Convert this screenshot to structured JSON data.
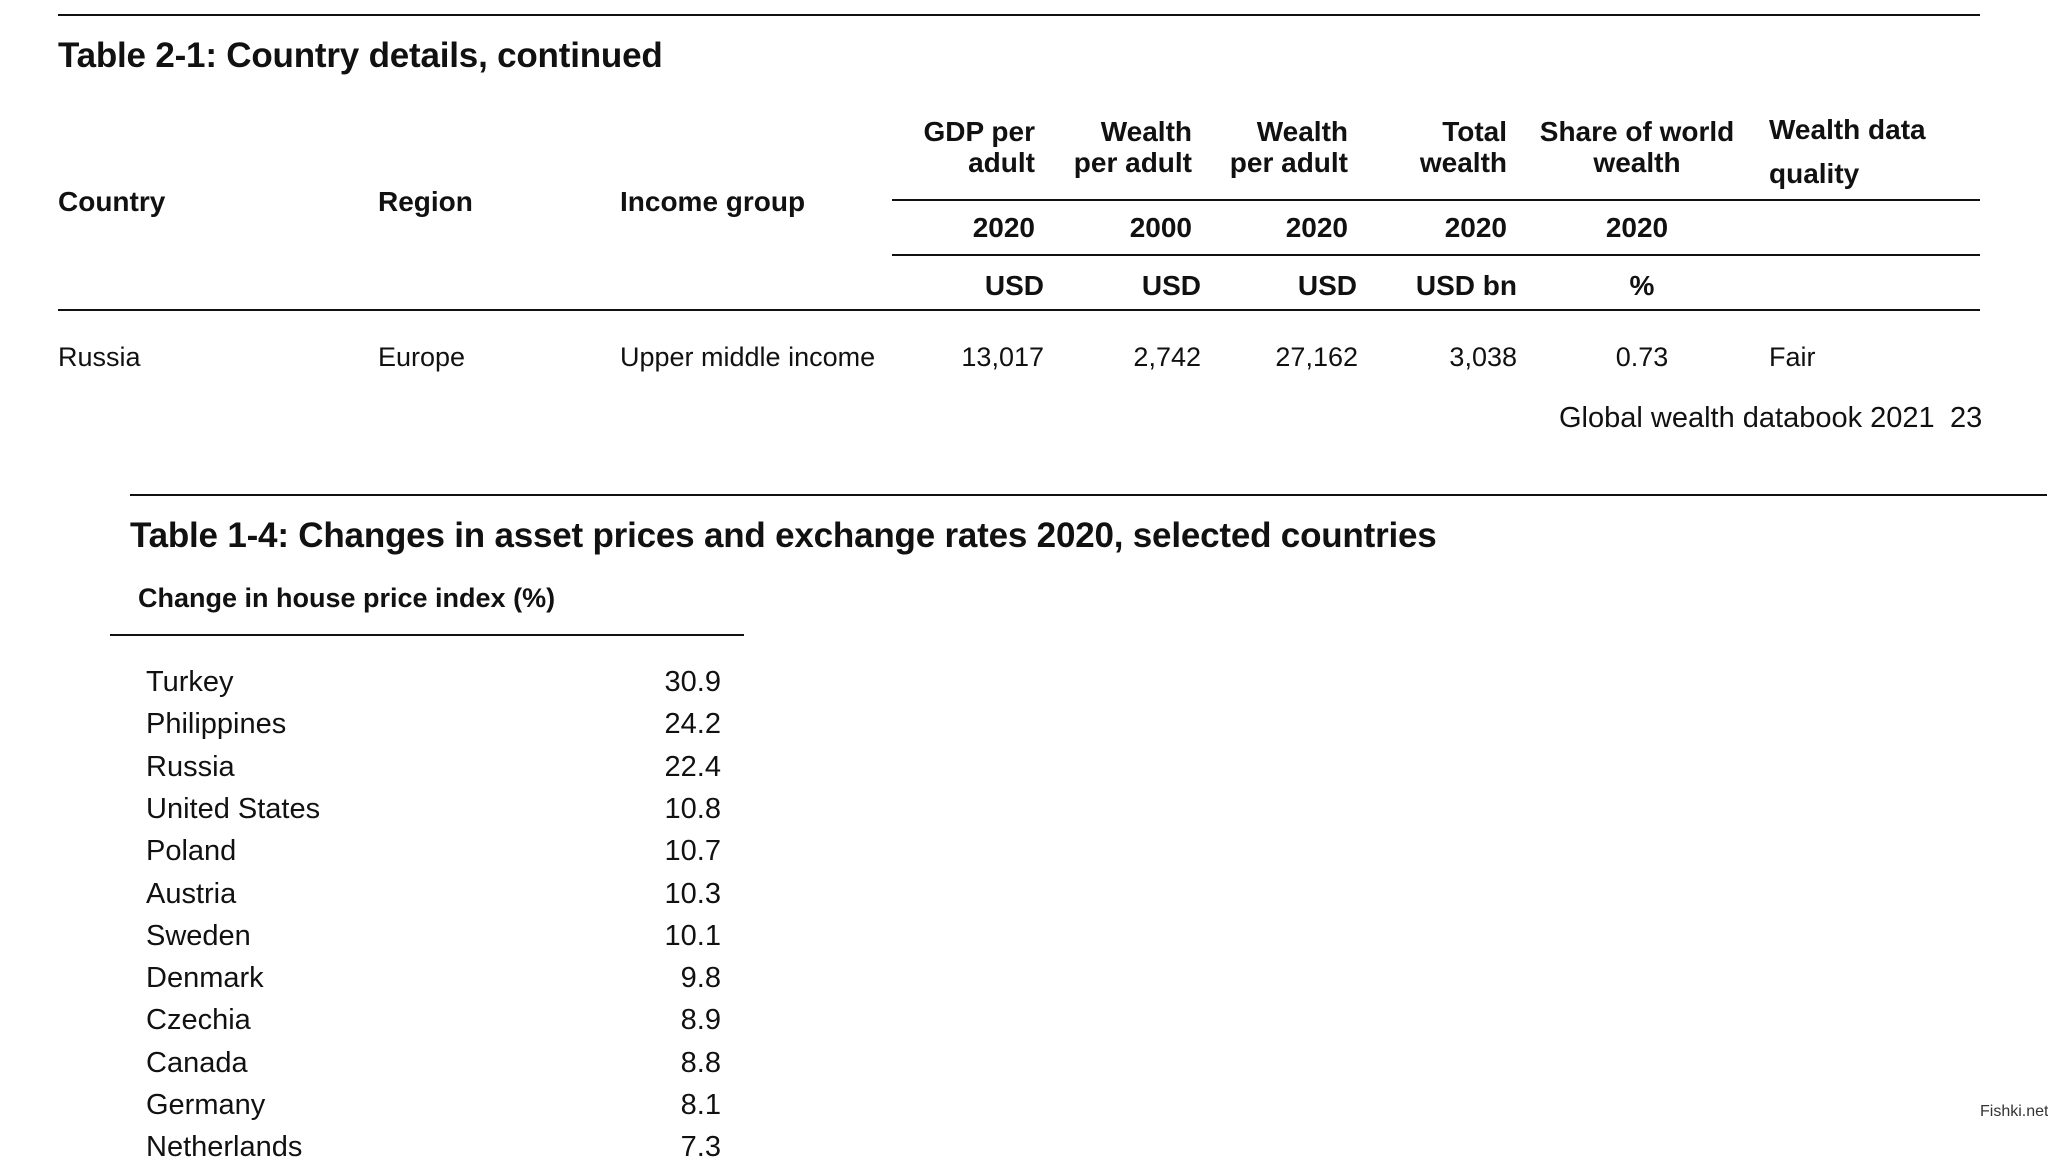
{
  "table21": {
    "title": "Table 2-1: Country details, continued",
    "headers": {
      "country": "Country",
      "region": "Region",
      "income_group": "Income group",
      "gdp_line1": "GDP per",
      "gdp_line2": "adult",
      "w2000_line1": "Wealth",
      "w2000_line2": "per adult",
      "w2020_line1": "Wealth",
      "w2020_line2": "per adult",
      "total_line1": "Total",
      "total_line2": "wealth",
      "share_line1": "Share of world",
      "share_line2": "wealth",
      "quality_line1": "Wealth data",
      "quality_line2": "quality"
    },
    "years": [
      "2020",
      "2000",
      "2020",
      "2020",
      "2020"
    ],
    "units": [
      "USD",
      "USD",
      "USD",
      "USD bn",
      "%"
    ],
    "row": {
      "country": "Russia",
      "region": "Europe",
      "income_group": "Upper middle income",
      "gdp": "13,017",
      "wealth_2000": "2,742",
      "wealth_2020": "27,162",
      "total_wealth": "3,038",
      "share": "0.73",
      "quality": "Fair"
    }
  },
  "footer": {
    "source": "Global wealth databook 2021",
    "page_number": "23"
  },
  "table14": {
    "title": "Table 1-4: Changes in asset prices and exchange rates 2020, selected countries",
    "subheader": "Change in house price index (%)",
    "rows": [
      {
        "country": "Turkey",
        "value": "30.9"
      },
      {
        "country": "Philippines",
        "value": "24.2"
      },
      {
        "country": "Russia",
        "value": "22.4"
      },
      {
        "country": "United States",
        "value": "10.8"
      },
      {
        "country": "Poland",
        "value": "10.7"
      },
      {
        "country": "Austria",
        "value": "10.3"
      },
      {
        "country": "Sweden",
        "value": "10.1"
      },
      {
        "country": "Denmark",
        "value": "9.8"
      },
      {
        "country": "Czechia",
        "value": "8.9"
      },
      {
        "country": "Canada",
        "value": "8.8"
      },
      {
        "country": "Germany",
        "value": "8.1"
      },
      {
        "country": "Netherlands",
        "value": "7.3"
      }
    ]
  },
  "watermark": "Fishki.net"
}
